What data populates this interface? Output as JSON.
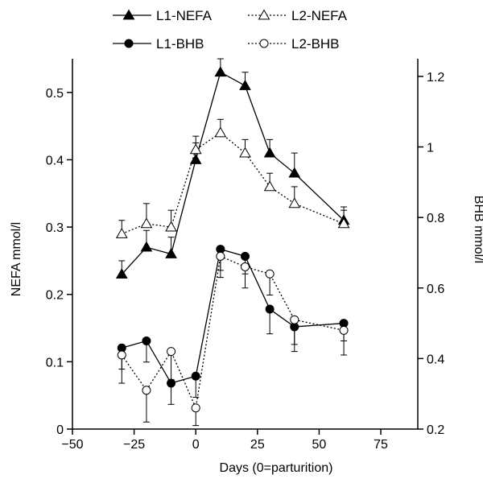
{
  "chart_data": {
    "type": "line",
    "xlabel": "Days (0=parturition)",
    "ylabel_left": "NEFA mmol/l",
    "ylabel_right": "BHB mmol/l",
    "xlim": [
      -50,
      90
    ],
    "ylim_left": [
      0,
      0.55
    ],
    "ylim_right": [
      0.2,
      1.25
    ],
    "x_ticks": [
      -50,
      -25,
      0,
      25,
      50,
      75
    ],
    "y_ticks_left": [
      0,
      0.1,
      0.2,
      0.3,
      0.4,
      0.5
    ],
    "y_ticks_right": [
      0.2,
      0.4,
      0.6,
      0.8,
      1,
      1.2
    ],
    "x_tick_labels": [
      "−50",
      "−25",
      "0",
      "25",
      "50",
      "75"
    ],
    "y_tick_labels_left": [
      "0",
      "0.1",
      "0.2",
      "0.3",
      "0.4",
      "0.5"
    ],
    "y_tick_labels_right": [
      "0.2",
      "0.4",
      "0.6",
      "0.8",
      "1",
      "1.2"
    ],
    "x": [
      -30,
      -20,
      -10,
      0,
      10,
      20,
      30,
      40,
      60
    ],
    "legend_placement": "top",
    "grid": false,
    "series": [
      {
        "name": "L1-NEFA",
        "axis": "left",
        "marker": "filled-triangle",
        "line": "solid",
        "values": [
          0.23,
          0.27,
          0.26,
          0.4,
          0.53,
          0.51,
          0.41,
          0.38,
          0.31
        ],
        "errors": [
          0.02,
          0.025,
          0.025,
          0.025,
          0.02,
          0.02,
          0.02,
          0.03,
          0.02
        ]
      },
      {
        "name": "L2-NEFA",
        "axis": "left",
        "marker": "open-triangle",
        "line": "dotted",
        "values": [
          0.29,
          0.305,
          0.3,
          0.415,
          0.44,
          0.41,
          0.36,
          0.335,
          0.305
        ],
        "errors": [
          0.02,
          0.03,
          0.025,
          0.02,
          0.02,
          0.02,
          0.02,
          0.025,
          0.02
        ]
      },
      {
        "name": "L1-BHB",
        "axis": "right",
        "marker": "filled-circle",
        "line": "solid",
        "values": [
          0.43,
          0.45,
          0.33,
          0.35,
          0.71,
          0.69,
          0.54,
          0.49,
          0.5
        ],
        "errors": [
          0.06,
          0.06,
          0.06,
          0.06,
          0.06,
          0.05,
          0.07,
          0.07,
          0.05
        ]
      },
      {
        "name": "L2-BHB",
        "axis": "right",
        "marker": "open-circle",
        "line": "dotted",
        "values": [
          0.41,
          0.31,
          0.42,
          0.26,
          0.69,
          0.66,
          0.64,
          0.51,
          0.48
        ],
        "errors": [
          0.08,
          0.09,
          0.08,
          0.05,
          0.06,
          0.06,
          0.06,
          0.07,
          0.07
        ]
      }
    ],
    "colors": {
      "line": "#000000",
      "background": "#ffffff"
    }
  }
}
